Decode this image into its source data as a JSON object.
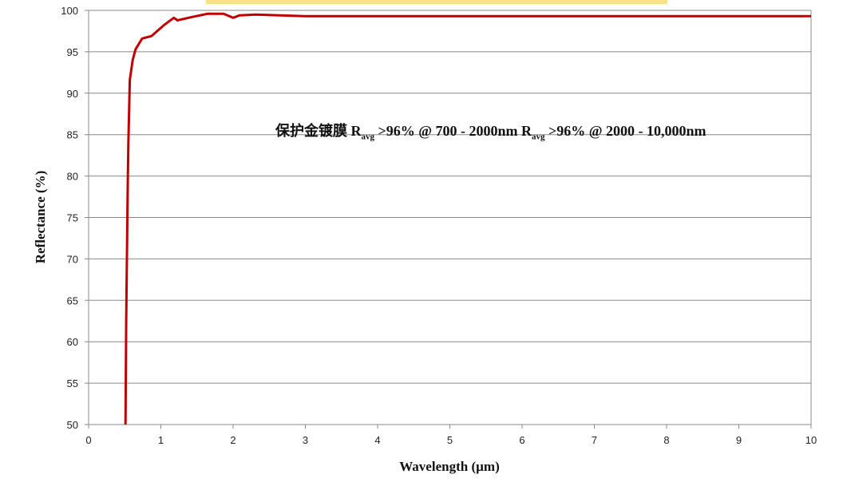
{
  "chart_data": {
    "type": "line",
    "title": "",
    "xlabel": "Wavelength (µm)",
    "ylabel": "Reflectance (%)",
    "xlim": [
      0,
      10
    ],
    "ylim": [
      50,
      100
    ],
    "xticks": [
      "0",
      "1",
      "2",
      "3",
      "4",
      "5",
      "6",
      "7",
      "8",
      "9",
      "10"
    ],
    "yticks": [
      "50",
      "55",
      "60",
      "65",
      "70",
      "75",
      "80",
      "85",
      "90",
      "95",
      "100"
    ],
    "grid": "horizontal",
    "line_color": "#c00000",
    "annotation": {
      "prefix": "保护金镀膜 R",
      "sub1": "avg",
      "mid": " >96% @ 700 - 2000nm R",
      "sub2": "avg",
      "suffix": " >96% @ 2000 - 10,000nm"
    },
    "series": [
      {
        "x": [
          0.51,
          0.52,
          0.54,
          0.55,
          0.57,
          0.61,
          0.65,
          0.74,
          0.87,
          1.04,
          1.18,
          1.23,
          1.43,
          1.65,
          1.87,
          2.0,
          2.09,
          2.31,
          3,
          5,
          7,
          10
        ],
        "y": [
          50,
          62.7,
          78,
          84,
          91.6,
          94,
          95.3,
          96.6,
          96.9,
          98.2,
          99.1,
          98.8,
          99.2,
          99.6,
          99.6,
          99.1,
          99.4,
          99.5,
          99.3,
          99.3,
          99.3,
          99.3
        ]
      }
    ]
  }
}
